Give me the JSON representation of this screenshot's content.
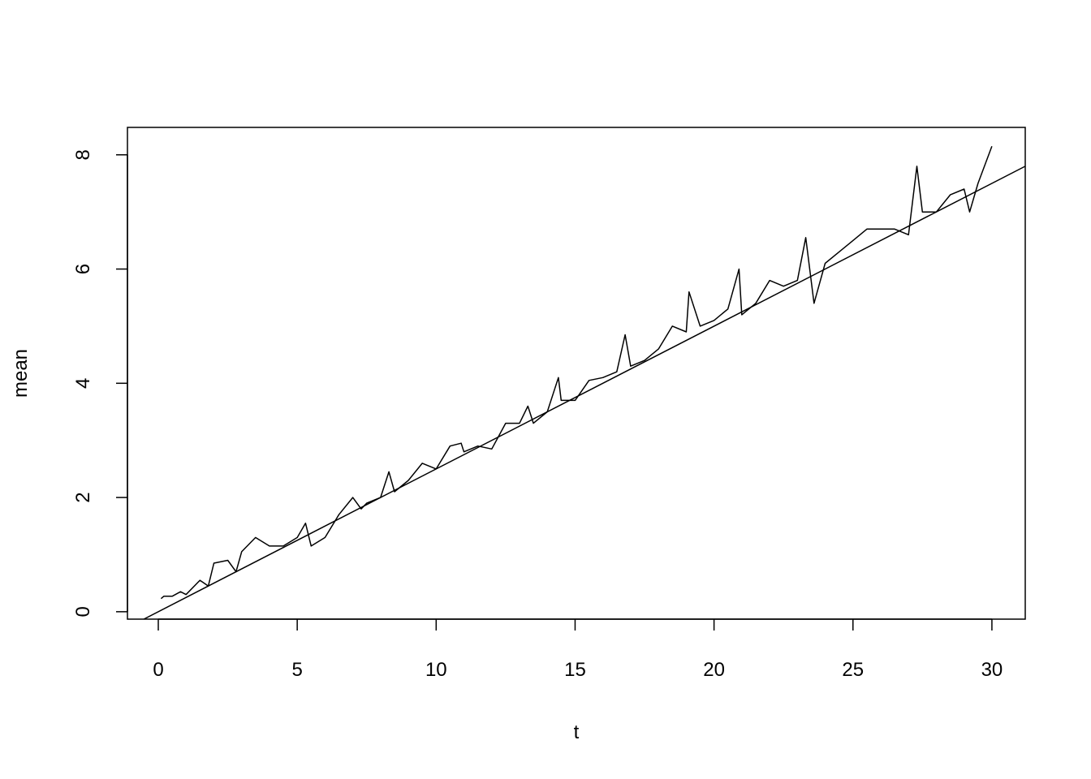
{
  "chart_data": {
    "type": "line",
    "title": "",
    "xlabel": "t",
    "ylabel": "mean",
    "xlim": [
      -1.11,
      31.2
    ],
    "ylim": [
      -0.13,
      8.48
    ],
    "xticks": [
      0,
      5,
      10,
      15,
      20,
      25,
      30
    ],
    "yticks": [
      0,
      2,
      4,
      6,
      8
    ],
    "grid": false,
    "series": [
      {
        "x": [
          0.1,
          0.2,
          0.5,
          0.8,
          1.0,
          1.5,
          1.8,
          2.0,
          2.5,
          2.8,
          3.0,
          3.5,
          4.0,
          4.5,
          5.0,
          5.3,
          5.5,
          6.0,
          6.5,
          7.0,
          7.3,
          7.5,
          8.0,
          8.3,
          8.5,
          9.0,
          9.5,
          10.0,
          10.5,
          10.9,
          11.0,
          11.5,
          12.0,
          12.5,
          13.0,
          13.3,
          13.5,
          14.0,
          14.4,
          14.5,
          15.0,
          15.5,
          16.0,
          16.5,
          16.8,
          17.0,
          17.5,
          18.0,
          18.5,
          19.0,
          19.1,
          19.5,
          20.0,
          20.5,
          20.9,
          21.0,
          21.5,
          22.0,
          22.5,
          23.0,
          23.3,
          23.6,
          24.0,
          24.5,
          25.0,
          25.5,
          26.0,
          26.5,
          27.0,
          27.3,
          27.5,
          28.0,
          28.5,
          29.0,
          29.2,
          29.5,
          30.0
        ],
        "y": [
          0.23,
          0.27,
          0.27,
          0.35,
          0.3,
          0.55,
          0.45,
          0.85,
          0.9,
          0.7,
          1.05,
          1.3,
          1.15,
          1.15,
          1.3,
          1.55,
          1.15,
          1.3,
          1.7,
          2.0,
          1.8,
          1.9,
          2.0,
          2.45,
          2.1,
          2.3,
          2.6,
          2.5,
          2.9,
          2.95,
          2.8,
          2.9,
          2.85,
          3.3,
          3.3,
          3.6,
          3.3,
          3.5,
          4.1,
          3.7,
          3.7,
          4.05,
          4.1,
          4.2,
          4.85,
          4.3,
          4.4,
          4.6,
          5.0,
          4.9,
          5.6,
          5.0,
          5.1,
          5.3,
          6.0,
          5.2,
          5.4,
          5.8,
          5.7,
          5.8,
          6.55,
          5.4,
          6.1,
          6.3,
          6.5,
          6.7,
          6.7,
          6.7,
          6.6,
          7.8,
          7.0,
          7.0,
          7.3,
          7.4,
          7.0,
          7.5,
          8.15
        ]
      }
    ],
    "abline": {
      "intercept": 0,
      "slope": 0.25
    }
  }
}
